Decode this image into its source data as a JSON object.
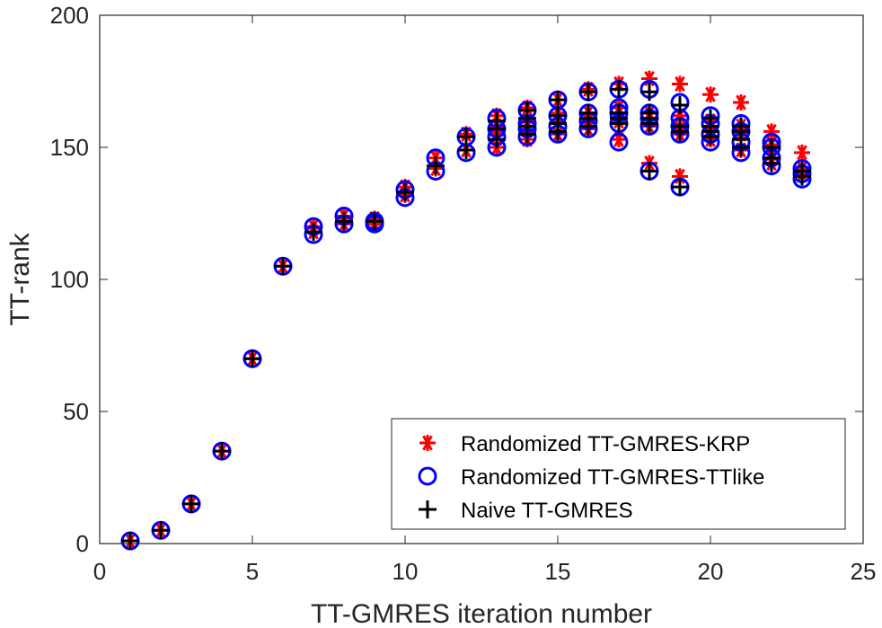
{
  "chart_data": {
    "type": "scatter",
    "xlabel": "TT-GMRES iteration number",
    "ylabel": "TT-rank",
    "xlim": [
      0,
      25
    ],
    "ylim": [
      0,
      200
    ],
    "xticks": [
      0,
      5,
      10,
      15,
      20,
      25
    ],
    "yticks": [
      0,
      50,
      100,
      150,
      200
    ],
    "x_tick_labels": [
      "0",
      "5",
      "10",
      "15",
      "20",
      "25"
    ],
    "y_tick_labels": [
      "0",
      "50",
      "100",
      "150",
      "200"
    ],
    "grid": false,
    "legend_position": "bottom-right",
    "series": [
      {
        "name": "Randomized TT-GMRES-KRP",
        "marker": "asterisk",
        "color": "#ff0000",
        "points": [
          [
            1,
            1
          ],
          [
            2,
            5
          ],
          [
            3,
            15
          ],
          [
            4,
            35
          ],
          [
            5,
            70
          ],
          [
            6,
            105
          ],
          [
            7,
            118
          ],
          [
            7,
            120
          ],
          [
            8,
            121
          ],
          [
            8,
            124
          ],
          [
            9,
            121
          ],
          [
            9,
            123
          ],
          [
            10,
            132
          ],
          [
            10,
            135
          ],
          [
            11,
            142
          ],
          [
            11,
            146
          ],
          [
            12,
            149
          ],
          [
            12,
            155
          ],
          [
            13,
            150
          ],
          [
            13,
            155
          ],
          [
            13,
            158
          ],
          [
            13,
            162
          ],
          [
            14,
            153
          ],
          [
            14,
            158
          ],
          [
            14,
            160
          ],
          [
            14,
            165
          ],
          [
            15,
            155
          ],
          [
            15,
            160
          ],
          [
            15,
            163
          ],
          [
            15,
            168
          ],
          [
            16,
            157
          ],
          [
            16,
            160
          ],
          [
            16,
            163
          ],
          [
            16,
            172
          ],
          [
            17,
            153
          ],
          [
            17,
            160
          ],
          [
            17,
            163
          ],
          [
            17,
            165
          ],
          [
            17,
            174
          ],
          [
            18,
            144
          ],
          [
            18,
            158
          ],
          [
            18,
            161
          ],
          [
            18,
            163
          ],
          [
            18,
            176
          ],
          [
            19,
            139
          ],
          [
            19,
            155
          ],
          [
            19,
            157
          ],
          [
            19,
            162
          ],
          [
            19,
            174
          ],
          [
            20,
            153
          ],
          [
            20,
            157
          ],
          [
            20,
            160
          ],
          [
            20,
            170
          ],
          [
            21,
            149
          ],
          [
            21,
            155
          ],
          [
            21,
            158
          ],
          [
            21,
            167
          ],
          [
            22,
            144
          ],
          [
            22,
            148
          ],
          [
            22,
            151
          ],
          [
            22,
            156
          ],
          [
            23,
            140
          ],
          [
            23,
            142
          ],
          [
            23,
            148
          ]
        ]
      },
      {
        "name": "Randomized TT-GMRES-TTlike",
        "marker": "circle",
        "color": "#0000ff",
        "points": [
          [
            1,
            1
          ],
          [
            2,
            5
          ],
          [
            3,
            15
          ],
          [
            4,
            35
          ],
          [
            5,
            70
          ],
          [
            6,
            105
          ],
          [
            7,
            117
          ],
          [
            7,
            120
          ],
          [
            8,
            121
          ],
          [
            8,
            124
          ],
          [
            9,
            121
          ],
          [
            9,
            122
          ],
          [
            10,
            131
          ],
          [
            10,
            134
          ],
          [
            11,
            141
          ],
          [
            11,
            146
          ],
          [
            12,
            148
          ],
          [
            12,
            154
          ],
          [
            13,
            150
          ],
          [
            13,
            154
          ],
          [
            13,
            157
          ],
          [
            13,
            161
          ],
          [
            14,
            154
          ],
          [
            14,
            157
          ],
          [
            14,
            159
          ],
          [
            14,
            164
          ],
          [
            15,
            155
          ],
          [
            15,
            158
          ],
          [
            15,
            162
          ],
          [
            15,
            168
          ],
          [
            16,
            157
          ],
          [
            16,
            160
          ],
          [
            16,
            163
          ],
          [
            16,
            171
          ],
          [
            17,
            152
          ],
          [
            17,
            159
          ],
          [
            17,
            163
          ],
          [
            17,
            165
          ],
          [
            17,
            172
          ],
          [
            18,
            141
          ],
          [
            18,
            158
          ],
          [
            18,
            161
          ],
          [
            18,
            163
          ],
          [
            18,
            172
          ],
          [
            19,
            135
          ],
          [
            19,
            155
          ],
          [
            19,
            158
          ],
          [
            19,
            161
          ],
          [
            19,
            167
          ],
          [
            20,
            152
          ],
          [
            20,
            155
          ],
          [
            20,
            159
          ],
          [
            20,
            162
          ],
          [
            21,
            148
          ],
          [
            21,
            152
          ],
          [
            21,
            156
          ],
          [
            21,
            159
          ],
          [
            22,
            143
          ],
          [
            22,
            146
          ],
          [
            22,
            150
          ],
          [
            22,
            152
          ],
          [
            23,
            138
          ],
          [
            23,
            140
          ],
          [
            23,
            142
          ]
        ]
      },
      {
        "name": "Naive TT-GMRES",
        "marker": "plus",
        "color": "#000000",
        "points": [
          [
            1,
            1
          ],
          [
            2,
            5
          ],
          [
            3,
            15
          ],
          [
            4,
            35
          ],
          [
            5,
            70
          ],
          [
            6,
            105
          ],
          [
            7,
            118
          ],
          [
            8,
            122
          ],
          [
            9,
            122
          ],
          [
            10,
            133
          ],
          [
            11,
            143
          ],
          [
            12,
            149
          ],
          [
            12,
            154
          ],
          [
            13,
            153
          ],
          [
            13,
            157
          ],
          [
            13,
            160
          ],
          [
            14,
            155
          ],
          [
            14,
            158
          ],
          [
            14,
            161
          ],
          [
            14,
            164
          ],
          [
            15,
            156
          ],
          [
            15,
            159
          ],
          [
            15,
            162
          ],
          [
            15,
            168
          ],
          [
            16,
            158
          ],
          [
            16,
            161
          ],
          [
            16,
            163
          ],
          [
            16,
            171
          ],
          [
            17,
            159
          ],
          [
            17,
            161
          ],
          [
            17,
            163
          ],
          [
            17,
            172
          ],
          [
            18,
            141
          ],
          [
            18,
            159
          ],
          [
            18,
            161
          ],
          [
            18,
            163
          ],
          [
            18,
            171
          ],
          [
            19,
            135
          ],
          [
            19,
            156
          ],
          [
            19,
            158
          ],
          [
            19,
            166
          ],
          [
            20,
            154
          ],
          [
            20,
            156
          ],
          [
            20,
            158
          ],
          [
            20,
            161
          ],
          [
            21,
            150
          ],
          [
            21,
            153
          ],
          [
            21,
            156
          ],
          [
            21,
            158
          ],
          [
            22,
            144
          ],
          [
            22,
            146
          ],
          [
            22,
            150
          ],
          [
            23,
            139
          ],
          [
            23,
            141
          ]
        ]
      }
    ]
  }
}
